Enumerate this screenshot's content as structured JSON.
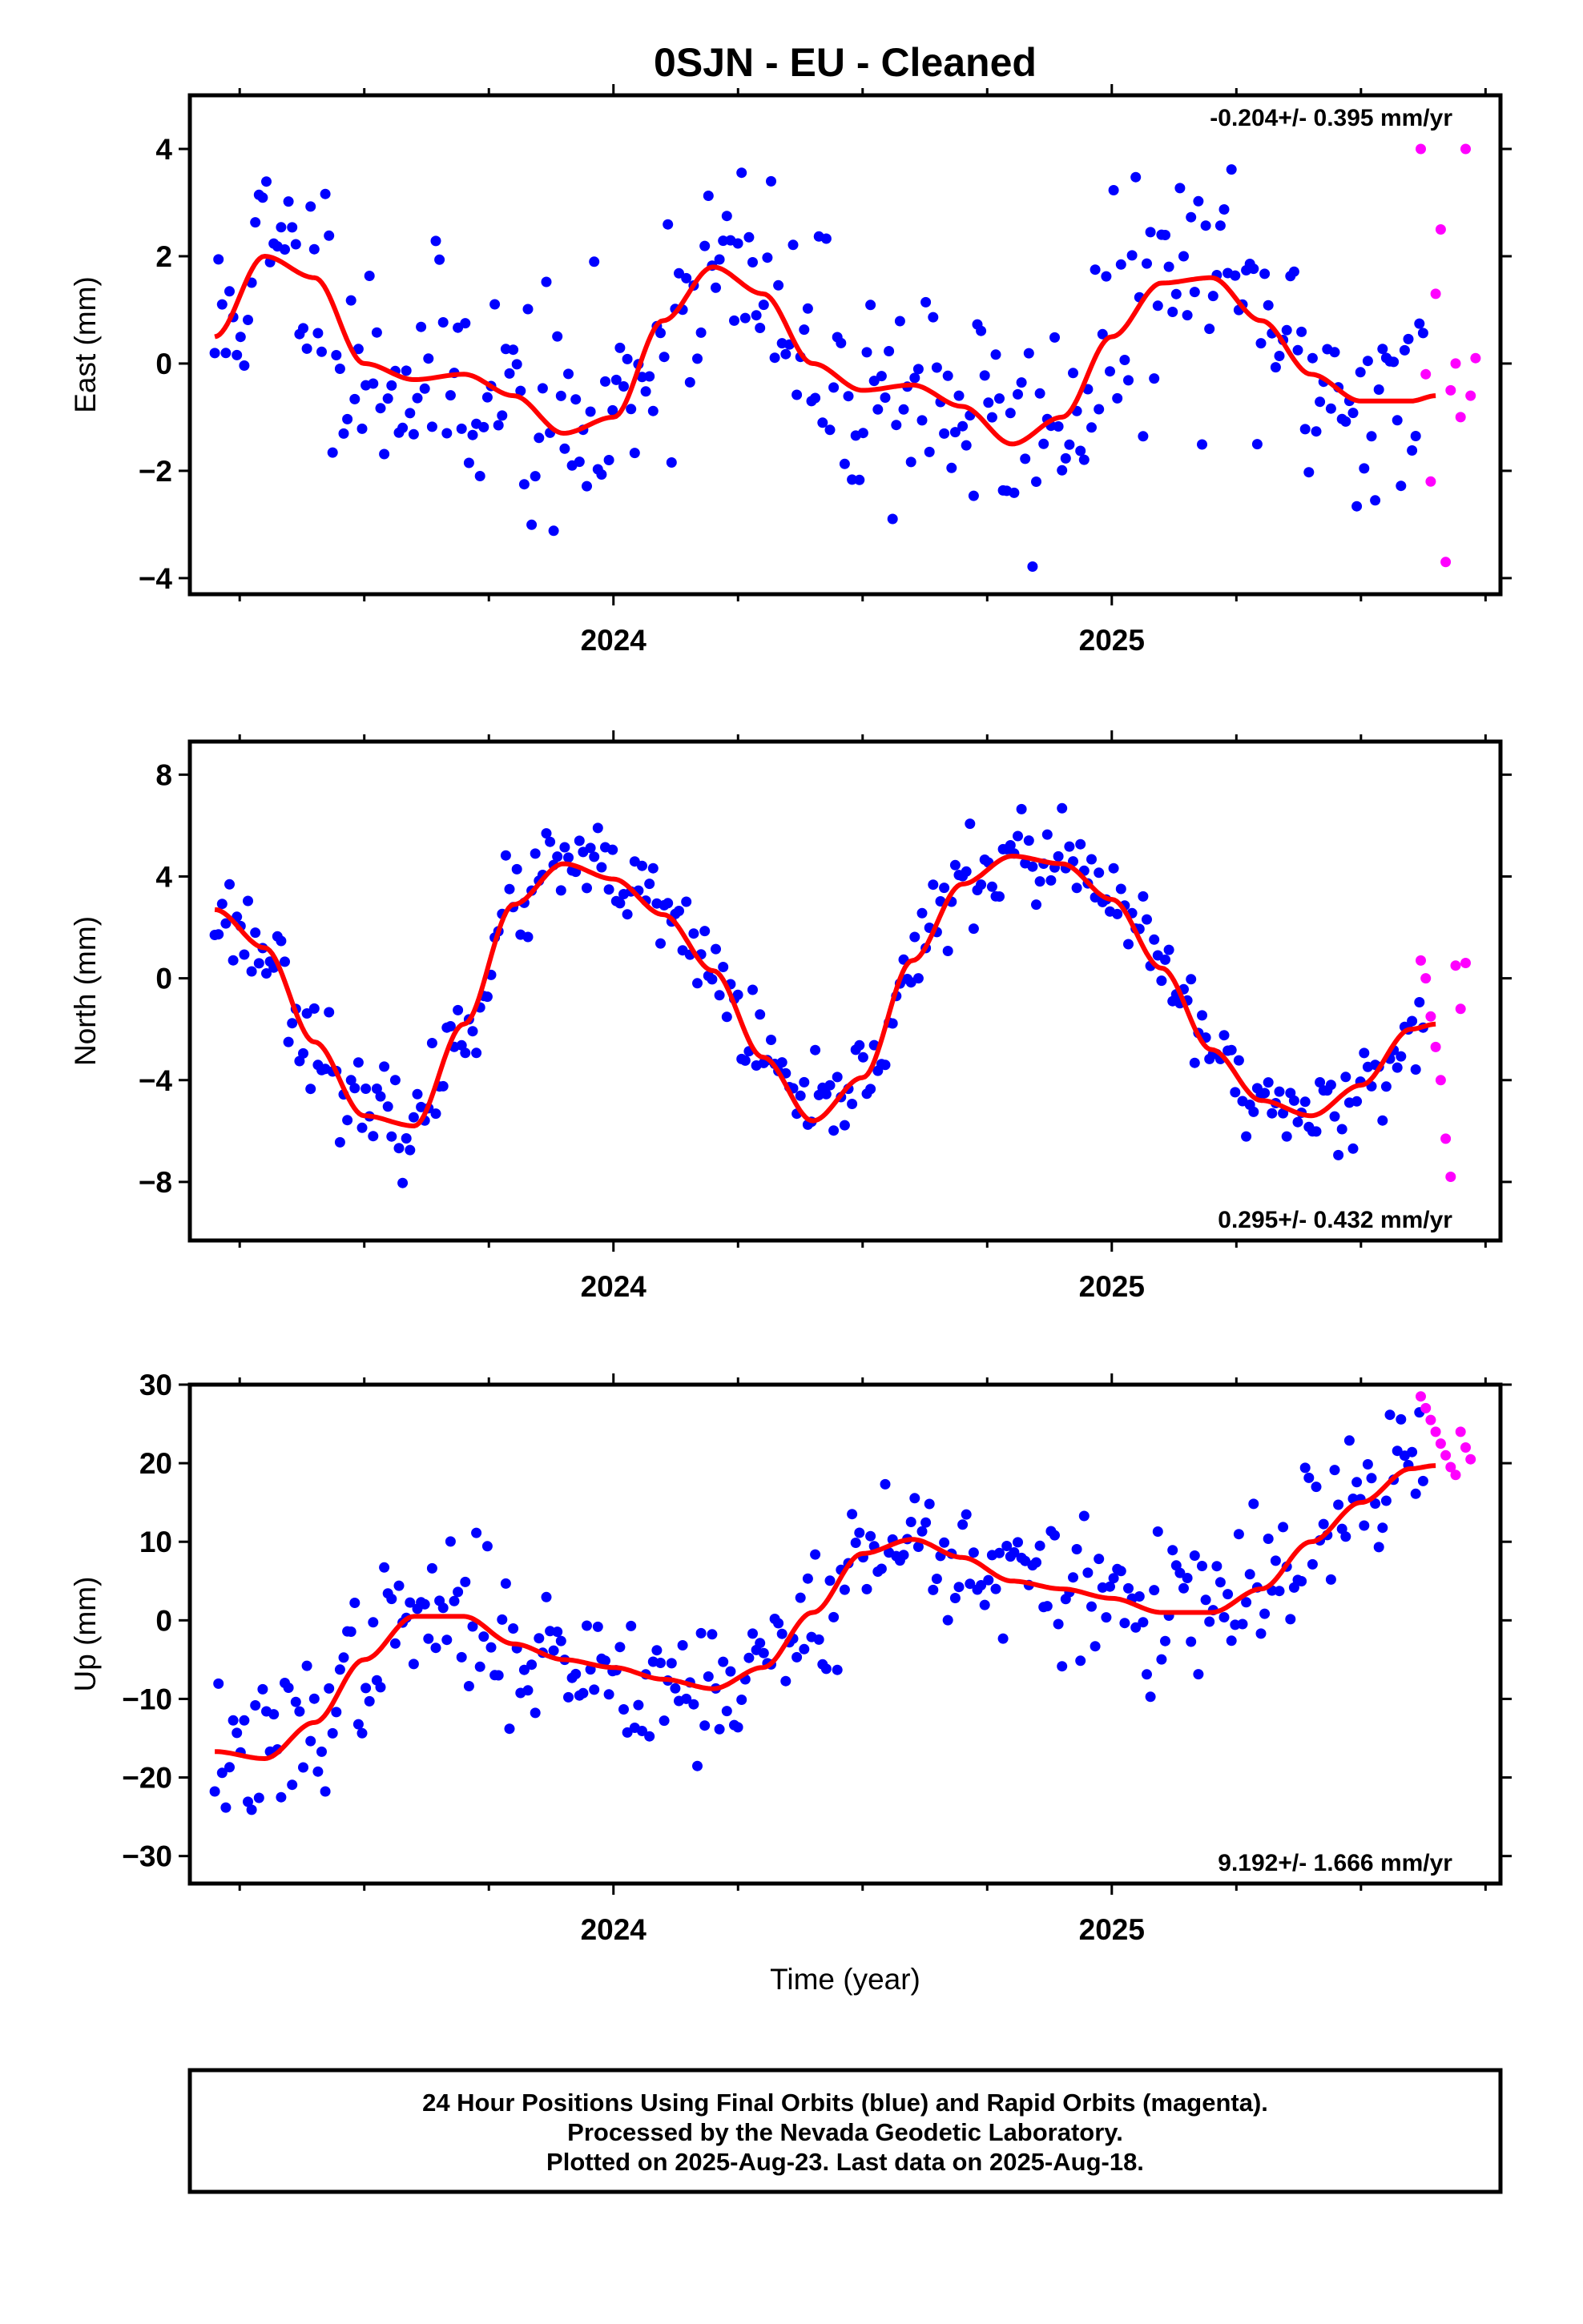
{
  "title": "0SJN  - EU - Cleaned",
  "xlabel": "Time (year)",
  "footer": [
    "24 Hour Positions Using Final Orbits (blue) and Rapid Orbits (magenta).",
    "Processed by the Nevada Geodetic Laboratory.",
    "Plotted on 2025-Aug-23. Last data on 2025-Aug-18."
  ],
  "colors": {
    "final": "#0000ff",
    "rapid": "#ff00ff",
    "fit": "#ff0000",
    "axis": "#000000"
  },
  "chart_data": [
    {
      "type": "scatter",
      "panel": "east",
      "ylabel": "East (mm)",
      "rate": "-0.204+/- 0.395 mm/yr",
      "xlim": [
        2023.15,
        2025.78
      ],
      "ylim": [
        -4.3,
        5.0
      ],
      "xticks": [
        2024,
        2025
      ],
      "yticks": [
        4,
        2,
        0,
        -2,
        -4
      ],
      "ytick_labels": [
        "4",
        "2",
        "0",
        "−2",
        "−4"
      ],
      "fit_curve": {
        "x": [
          2023.2,
          2023.3,
          2023.4,
          2023.5,
          2023.6,
          2023.7,
          2023.8,
          2023.9,
          2024.0,
          2024.1,
          2024.2,
          2024.3,
          2024.4,
          2024.5,
          2024.6,
          2024.7,
          2024.8,
          2024.9,
          2025.0,
          2025.1,
          2025.2,
          2025.3,
          2025.4,
          2025.5,
          2025.6,
          2025.65
        ],
        "y": [
          0.5,
          2.0,
          1.6,
          0.0,
          -0.3,
          -0.2,
          -0.6,
          -1.3,
          -1.0,
          0.8,
          1.8,
          1.3,
          0.0,
          -0.5,
          -0.4,
          -0.8,
          -1.5,
          -1.0,
          0.5,
          1.5,
          1.6,
          0.8,
          -0.2,
          -0.7,
          -0.7,
          -0.6
        ]
      },
      "final_envelope": {
        "step_days": 2.7,
        "start": 2023.2,
        "end": 2025.63,
        "scatter_mm": 1.1,
        "seed": 11
      },
      "rapid_points": {
        "x": [
          2025.62,
          2025.63,
          2025.64,
          2025.65,
          2025.66,
          2025.67,
          2025.68,
          2025.69,
          2025.7,
          2025.71,
          2025.72,
          2025.73
        ],
        "y": [
          4.0,
          -0.2,
          -2.2,
          1.3,
          2.5,
          -3.7,
          -0.5,
          0.0,
          -1.0,
          4.0,
          -0.6,
          0.1
        ]
      }
    },
    {
      "type": "scatter",
      "panel": "north",
      "ylabel": "North (mm)",
      "rate": "0.295+/- 0.432 mm/yr",
      "xlim": [
        2023.15,
        2025.78
      ],
      "ylim": [
        -10.3,
        9.3
      ],
      "xticks": [
        2024,
        2025
      ],
      "yticks": [
        8,
        4,
        0,
        -4,
        -8
      ],
      "ytick_labels": [
        "8",
        "4",
        "0",
        "−4",
        "−8"
      ],
      "fit_curve": {
        "x": [
          2023.2,
          2023.3,
          2023.4,
          2023.5,
          2023.6,
          2023.7,
          2023.8,
          2023.9,
          2024.0,
          2024.1,
          2024.2,
          2024.3,
          2024.4,
          2024.5,
          2024.6,
          2024.7,
          2024.8,
          2024.9,
          2025.0,
          2025.1,
          2025.2,
          2025.3,
          2025.4,
          2025.5,
          2025.6,
          2025.65
        ],
        "y": [
          2.7,
          1.2,
          -2.5,
          -5.4,
          -5.8,
          -1.8,
          2.9,
          4.5,
          3.9,
          2.5,
          0.3,
          -3.1,
          -5.6,
          -3.9,
          0.7,
          3.7,
          4.8,
          4.5,
          3.1,
          0.4,
          -2.8,
          -4.8,
          -5.4,
          -4.2,
          -2.0,
          -1.8
        ]
      },
      "final_envelope": {
        "step_days": 2.7,
        "start": 2023.2,
        "end": 2025.63,
        "scatter_mm": 0.9,
        "seed": 23
      },
      "rapid_points": {
        "x": [
          2025.62,
          2025.63,
          2025.64,
          2025.65,
          2025.66,
          2025.67,
          2025.68,
          2025.69,
          2025.7,
          2025.71
        ],
        "y": [
          0.7,
          0.0,
          -1.5,
          -2.7,
          -4.0,
          -6.3,
          -7.8,
          0.5,
          -1.2,
          0.6
        ]
      }
    },
    {
      "type": "scatter",
      "panel": "up",
      "ylabel": "Up (mm)",
      "rate": "9.192+/- 1.666 mm/yr",
      "xlim": [
        2023.15,
        2025.78
      ],
      "ylim": [
        -33.5,
        30.0
      ],
      "xticks": [
        2024,
        2025
      ],
      "yticks": [
        30,
        20,
        10,
        0,
        -10,
        -20,
        -30
      ],
      "ytick_labels": [
        "30",
        "20",
        "10",
        "0",
        "−10",
        "−20",
        "−30"
      ],
      "fit_curve": {
        "x": [
          2023.2,
          2023.3,
          2023.4,
          2023.5,
          2023.6,
          2023.7,
          2023.8,
          2023.9,
          2024.0,
          2024.1,
          2024.2,
          2024.3,
          2024.4,
          2024.5,
          2024.6,
          2024.7,
          2024.8,
          2024.9,
          2025.0,
          2025.1,
          2025.2,
          2025.3,
          2025.4,
          2025.5,
          2025.6,
          2025.65
        ],
        "y": [
          -16.7,
          -17.6,
          -13.0,
          -5.0,
          0.5,
          0.5,
          -3.0,
          -5.0,
          -6.0,
          -7.5,
          -8.7,
          -6.0,
          1.0,
          8.5,
          10.3,
          8.0,
          5.0,
          4.0,
          2.8,
          1.0,
          1.0,
          4.0,
          10.0,
          15.0,
          19.3,
          19.7
        ]
      },
      "final_envelope": {
        "step_days": 2.7,
        "start": 2023.2,
        "end": 2025.63,
        "scatter_mm": 4.6,
        "seed": 37
      },
      "rapid_points": {
        "x": [
          2025.62,
          2025.63,
          2025.64,
          2025.65,
          2025.66,
          2025.67,
          2025.68,
          2025.69,
          2025.7,
          2025.71,
          2025.72
        ],
        "y": [
          28.5,
          27.0,
          25.5,
          24.0,
          22.5,
          21.0,
          19.5,
          18.5,
          24.0,
          22.0,
          20.5
        ]
      }
    }
  ]
}
